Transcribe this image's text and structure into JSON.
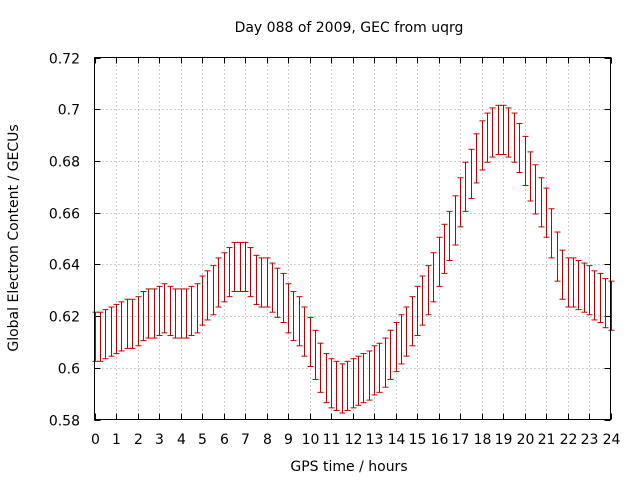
{
  "chart_data": {
    "type": "line",
    "title": "Day 088 of 2009, GEC from uqrg",
    "xlabel": "GPS time / hours",
    "ylabel": "Global Electron Content / GECUs",
    "xlim": [
      0,
      24
    ],
    "ylim": [
      0.58,
      0.72
    ],
    "grid": true,
    "series_color": "#c00000",
    "x_ticks": [
      "0",
      "1",
      "2",
      "3",
      "4",
      "5",
      "6",
      "7",
      "8",
      "9",
      "10",
      "11",
      "12",
      "13",
      "14",
      "15",
      "16",
      "17",
      "18",
      "19",
      "20",
      "21",
      "22",
      "23",
      "24"
    ],
    "y_ticks": [
      "0.58",
      "0.6",
      "0.62",
      "0.64",
      "0.66",
      "0.68",
      "0.7",
      "0.72"
    ],
    "error_halfwidth": 0.0095,
    "x": [
      0,
      0.25,
      0.5,
      0.75,
      1,
      1.25,
      1.5,
      1.75,
      2,
      2.25,
      2.5,
      2.75,
      3,
      3.25,
      3.5,
      3.75,
      4,
      4.25,
      4.5,
      4.75,
      5,
      5.25,
      5.5,
      5.75,
      6,
      6.25,
      6.5,
      6.75,
      7,
      7.25,
      7.5,
      7.75,
      8,
      8.25,
      8.5,
      8.75,
      9,
      9.25,
      9.5,
      9.75,
      10,
      10.25,
      10.5,
      10.75,
      11,
      11.25,
      11.5,
      11.75,
      12,
      12.25,
      12.5,
      12.75,
      13,
      13.25,
      13.5,
      13.75,
      14,
      14.25,
      14.5,
      14.75,
      15,
      15.25,
      15.5,
      15.75,
      16,
      16.25,
      16.5,
      16.75,
      17,
      17.25,
      17.5,
      17.75,
      18,
      18.25,
      18.5,
      18.75,
      19,
      19.25,
      19.5,
      19.75,
      20,
      20.25,
      20.5,
      20.75,
      21,
      21.25,
      21.5,
      21.75,
      22,
      22.25,
      22.5,
      22.75,
      23,
      23.25,
      23.5,
      23.75,
      24
    ],
    "y": [
      0.612,
      0.612,
      0.613,
      0.614,
      0.615,
      0.616,
      0.617,
      0.617,
      0.618,
      0.62,
      0.621,
      0.621,
      0.622,
      0.623,
      0.622,
      0.621,
      0.621,
      0.621,
      0.622,
      0.623,
      0.626,
      0.628,
      0.63,
      0.633,
      0.635,
      0.637,
      0.639,
      0.639,
      0.639,
      0.637,
      0.634,
      0.633,
      0.633,
      0.631,
      0.629,
      0.627,
      0.623,
      0.62,
      0.618,
      0.614,
      0.61,
      0.605,
      0.6,
      0.596,
      0.594,
      0.593,
      0.592,
      0.593,
      0.594,
      0.595,
      0.596,
      0.597,
      0.599,
      0.6,
      0.602,
      0.605,
      0.608,
      0.611,
      0.614,
      0.618,
      0.622,
      0.626,
      0.63,
      0.635,
      0.641,
      0.646,
      0.651,
      0.657,
      0.664,
      0.67,
      0.675,
      0.681,
      0.686,
      0.689,
      0.691,
      0.692,
      0.692,
      0.691,
      0.689,
      0.685,
      0.68,
      0.674,
      0.669,
      0.664,
      0.66,
      0.652,
      0.643,
      0.636,
      0.633,
      0.633,
      0.632,
      0.631,
      0.63,
      0.628,
      0.627,
      0.625,
      0.624
    ]
  }
}
